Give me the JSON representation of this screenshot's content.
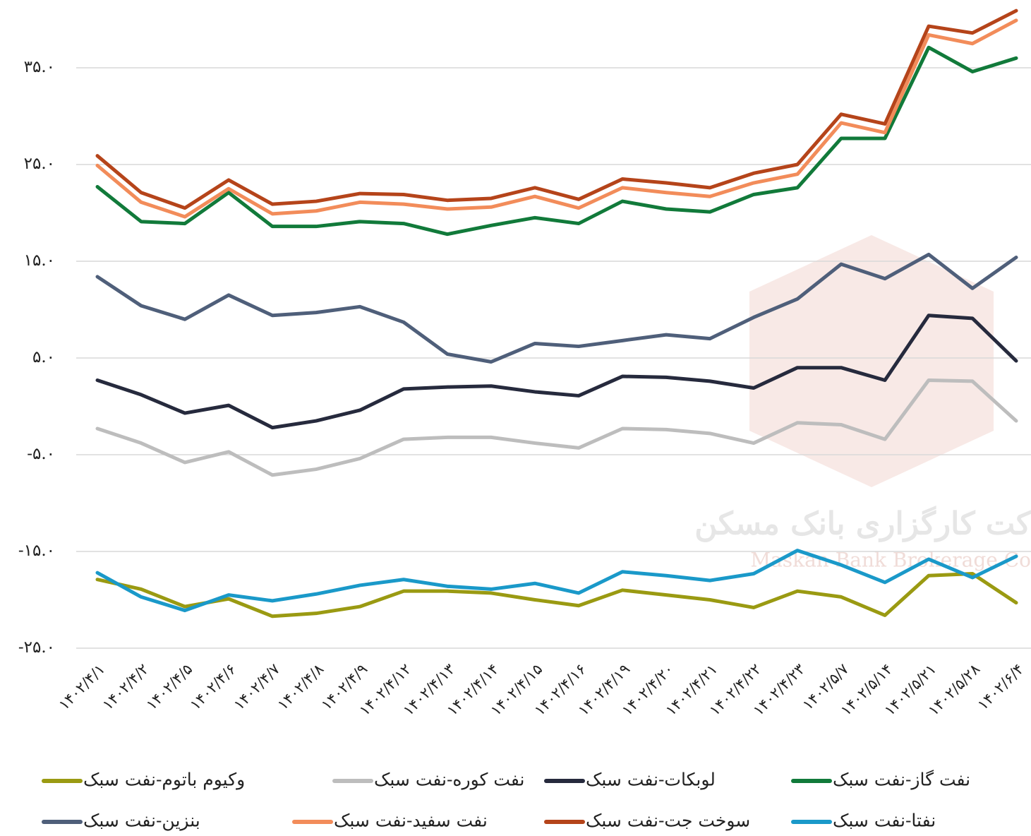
{
  "chart_data": {
    "type": "line",
    "watermark": [
      "کت کارگزاری بانک مسکن",
      "Maskan Bank Brokerage Co"
    ],
    "categories": [
      "۱۴۰۲/۴/۱",
      "۱۴۰۲/۴/۲",
      "۱۴۰۲/۴/۵",
      "۱۴۰۲/۴/۶",
      "۱۴۰۲/۴/۷",
      "۱۴۰۲/۴/۸",
      "۱۴۰۲/۴/۹",
      "۱۴۰۲/۴/۱۲",
      "۱۴۰۲/۴/۱۳",
      "۱۴۰۲/۴/۱۴",
      "۱۴۰۲/۴/۱۵",
      "۱۴۰۲/۴/۱۶",
      "۱۴۰۲/۴/۱۹",
      "۱۴۰۲/۴/۲۰",
      "۱۴۰۲/۴/۲۱",
      "۱۴۰۲/۴/۲۲",
      "۱۴۰۲/۴/۲۳",
      "۱۴۰۲/۵/۷",
      "۱۴۰۲/۵/۱۴",
      "۱۴۰۲/۵/۲۱",
      "۱۴۰۲/۵/۲۸",
      "۱۴۰۲/۶/۴"
    ],
    "ylim": [
      -25,
      42
    ],
    "yticks": [
      {
        "value": 35,
        "label": "۳۵.۰"
      },
      {
        "value": 25,
        "label": "۲۵.۰"
      },
      {
        "value": 15,
        "label": "۱۵.۰"
      },
      {
        "value": 5,
        "label": "۵.۰"
      },
      {
        "value": -5,
        "label": "-۵.۰"
      },
      {
        "value": -15,
        "label": "-۱۵.۰"
      },
      {
        "value": -25,
        "label": "-۲۵.۰"
      }
    ],
    "grid": true,
    "legend": "bottom",
    "series": [
      {
        "name": "نفت گاز-نفت سبک",
        "color": "#117a3a",
        "values": [
          22.7,
          19.1,
          18.9,
          22.1,
          18.6,
          18.6,
          19.1,
          18.9,
          17.8,
          18.7,
          19.5,
          18.9,
          21.2,
          20.4,
          20.1,
          21.9,
          22.6,
          27.7,
          27.7,
          37.1,
          34.6,
          36.0
        ]
      },
      {
        "name": "لوبکات-نفت سبک",
        "color": "#262a3d",
        "values": [
          2.7,
          1.2,
          -0.7,
          0.1,
          -2.2,
          -1.5,
          -0.4,
          1.8,
          2.0,
          2.1,
          1.5,
          1.1,
          3.1,
          3.0,
          2.6,
          1.9,
          4.0,
          4.0,
          2.7,
          9.4,
          9.1,
          4.7
        ]
      },
      {
        "name": "نفت کوره-نفت سبک",
        "color": "#bdbdbd",
        "values": [
          -2.3,
          -3.8,
          -5.8,
          -4.7,
          -7.1,
          -6.5,
          -5.4,
          -3.4,
          -3.2,
          -3.2,
          -3.8,
          -4.3,
          -2.3,
          -2.4,
          -2.8,
          -3.8,
          -1.7,
          -1.9,
          -3.4,
          2.7,
          2.6,
          -1.5
        ]
      },
      {
        "name": "وکیوم باتوم-نفت سبک",
        "color": "#9a9a12",
        "values": [
          -17.9,
          -18.9,
          -20.7,
          -19.9,
          -21.7,
          -21.4,
          -20.7,
          -19.1,
          -19.1,
          -19.3,
          -20.0,
          -20.6,
          -19.0,
          -19.5,
          -20.0,
          -20.8,
          -19.1,
          -19.7,
          -21.6,
          -17.5,
          -17.3,
          -20.3
        ]
      },
      {
        "name": "نفتا-نفت سبک",
        "color": "#1a99c9",
        "values": [
          -17.2,
          -19.7,
          -21.1,
          -19.5,
          -20.1,
          -19.4,
          -18.5,
          -17.9,
          -18.6,
          -18.9,
          -18.3,
          -19.3,
          -17.1,
          -17.5,
          -18.0,
          -17.3,
          -14.9,
          -16.4,
          -18.2,
          -15.8,
          -17.7,
          -15.5
        ]
      },
      {
        "name": "سوخت جت-نفت سبک",
        "color": "#b5441a",
        "values": [
          25.9,
          22.1,
          20.5,
          23.4,
          20.9,
          21.2,
          22.0,
          21.9,
          21.3,
          21.5,
          22.6,
          21.4,
          23.5,
          23.1,
          22.6,
          24.1,
          25.0,
          30.2,
          29.2,
          39.3,
          38.6,
          40.9
        ]
      },
      {
        "name": "نفت سفید-نفت سبک",
        "color": "#f28c5a",
        "values": [
          24.9,
          21.1,
          19.6,
          22.5,
          19.9,
          20.2,
          21.1,
          20.9,
          20.4,
          20.6,
          21.7,
          20.5,
          22.6,
          22.1,
          21.7,
          23.1,
          24.0,
          29.3,
          28.3,
          38.4,
          37.5,
          39.9
        ]
      },
      {
        "name": "بنزین-نفت سبک",
        "color": "#4f5f7a",
        "values": [
          13.4,
          10.4,
          9.0,
          11.5,
          9.4,
          9.7,
          10.3,
          8.7,
          5.4,
          4.6,
          6.5,
          6.2,
          6.8,
          7.4,
          7.0,
          9.2,
          11.1,
          14.7,
          13.2,
          15.7,
          12.2,
          15.4
        ]
      }
    ]
  }
}
